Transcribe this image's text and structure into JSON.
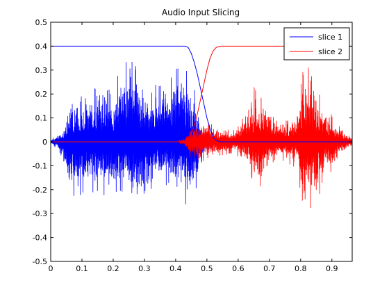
{
  "chart_data": {
    "type": "line",
    "title": "Audio Input Slicing",
    "xlabel": "",
    "ylabel": "",
    "xlim": [
      0,
      0.965
    ],
    "ylim": [
      -0.5,
      0.5
    ],
    "xticks": [
      0,
      0.1,
      0.2,
      0.3,
      0.4,
      0.5,
      0.6,
      0.7,
      0.8,
      0.9
    ],
    "xtick_labels": [
      "0",
      "0.1",
      "0.2",
      "0.3",
      "0.4",
      "0.5",
      "0.6",
      "0.7",
      "0.8",
      "0.9"
    ],
    "yticks": [
      -0.5,
      -0.4,
      -0.3,
      -0.2,
      -0.1,
      0,
      0.1,
      0.2,
      0.3,
      0.4,
      0.5
    ],
    "ytick_labels": [
      "-0.5",
      "-0.4",
      "-0.3",
      "-0.2",
      "-0.1",
      "0",
      "0.1",
      "0.2",
      "0.3",
      "0.4",
      "0.5"
    ],
    "grid": false,
    "legend_position": "top-right",
    "colors": {
      "slice1": "#0000ff",
      "slice2": "#ff0000"
    },
    "series": [
      {
        "name": "slice 1",
        "kind": "envelope",
        "color": "#0000ff",
        "x": [
          0,
          0.43,
          0.44,
          0.45,
          0.46,
          0.47,
          0.48,
          0.49,
          0.5,
          0.51,
          0.52,
          0.53,
          0.545,
          0.965
        ],
        "y": [
          0.4,
          0.4,
          0.395,
          0.37,
          0.33,
          0.28,
          0.22,
          0.16,
          0.1,
          0.055,
          0.02,
          0.005,
          0,
          0
        ]
      },
      {
        "name": "slice 2",
        "kind": "envelope",
        "color": "#ff0000",
        "x": [
          0,
          0.43,
          0.44,
          0.45,
          0.46,
          0.47,
          0.48,
          0.49,
          0.5,
          0.51,
          0.52,
          0.53,
          0.545,
          0.965
        ],
        "y": [
          0,
          0,
          0.005,
          0.03,
          0.07,
          0.12,
          0.18,
          0.24,
          0.3,
          0.35,
          0.38,
          0.395,
          0.4,
          0.4
        ]
      },
      {
        "name": "",
        "kind": "waveform",
        "color": "#0000ff",
        "x_range": [
          0,
          0.55
        ],
        "amplitude_points": {
          "x": [
            0,
            0.02,
            0.04,
            0.06,
            0.08,
            0.1,
            0.12,
            0.15,
            0.18,
            0.2,
            0.22,
            0.24,
            0.26,
            0.28,
            0.3,
            0.32,
            0.34,
            0.36,
            0.38,
            0.4,
            0.42,
            0.44,
            0.46,
            0.48,
            0.5,
            0.52,
            0.55
          ],
          "upper": [
            0.01,
            0.03,
            0.06,
            0.17,
            0.2,
            0.2,
            0.21,
            0.24,
            0.27,
            0.24,
            0.3,
            0.34,
            0.36,
            0.32,
            0.27,
            0.3,
            0.24,
            0.26,
            0.25,
            0.35,
            0.35,
            0.28,
            0.22,
            0.08,
            0.04,
            0.02,
            0.01
          ],
          "lower": [
            -0.01,
            -0.03,
            -0.1,
            -0.22,
            -0.26,
            -0.23,
            -0.22,
            -0.23,
            -0.24,
            -0.2,
            -0.24,
            -0.25,
            -0.24,
            -0.24,
            -0.25,
            -0.21,
            -0.18,
            -0.2,
            -0.17,
            -0.22,
            -0.23,
            -0.3,
            -0.25,
            -0.1,
            -0.04,
            -0.02,
            -0.01
          ]
        }
      },
      {
        "name": "",
        "kind": "waveform",
        "color": "#ff0000",
        "x_range": [
          0.41,
          0.965
        ],
        "amplitude_points": {
          "x": [
            0.41,
            0.43,
            0.45,
            0.47,
            0.49,
            0.51,
            0.53,
            0.55,
            0.57,
            0.59,
            0.61,
            0.63,
            0.65,
            0.67,
            0.69,
            0.71,
            0.73,
            0.75,
            0.77,
            0.79,
            0.81,
            0.83,
            0.85,
            0.87,
            0.89,
            0.91,
            0.93,
            0.95,
            0.965
          ],
          "upper": [
            0.005,
            0.02,
            0.05,
            0.08,
            0.09,
            0.08,
            0.06,
            0.06,
            0.05,
            0.06,
            0.1,
            0.14,
            0.23,
            0.2,
            0.17,
            0.12,
            0.08,
            0.09,
            0.1,
            0.12,
            0.36,
            0.3,
            0.26,
            0.17,
            0.13,
            0.1,
            0.06,
            0.04,
            0.02
          ],
          "lower": [
            -0.005,
            -0.02,
            -0.08,
            -0.09,
            -0.09,
            -0.07,
            -0.06,
            -0.06,
            -0.05,
            -0.05,
            -0.08,
            -0.1,
            -0.18,
            -0.2,
            -0.13,
            -0.1,
            -0.08,
            -0.09,
            -0.1,
            -0.12,
            -0.32,
            -0.28,
            -0.26,
            -0.2,
            -0.14,
            -0.1,
            -0.06,
            -0.04,
            -0.02
          ]
        }
      }
    ]
  }
}
